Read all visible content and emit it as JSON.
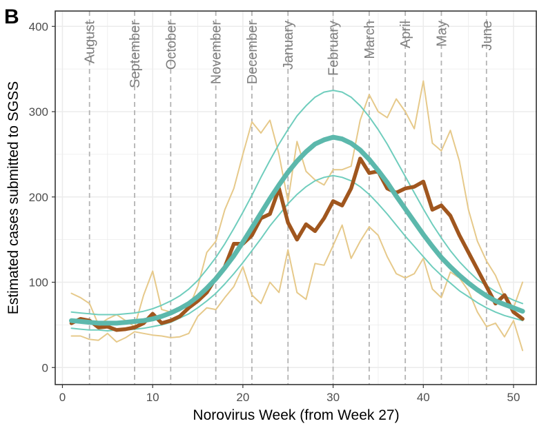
{
  "panel_label": "B",
  "chart_data": {
    "type": "line",
    "xlabel": "Norovirus Week (from Week 27)",
    "ylabel": "Estimated cases submitted to SGSS",
    "xlim": [
      -0.8,
      52.6
    ],
    "ylim": [
      -20,
      418
    ],
    "x_ticks": [
      0,
      10,
      20,
      30,
      40,
      50
    ],
    "y_ticks": [
      0,
      100,
      200,
      300,
      400
    ],
    "grid": true,
    "legend": "none",
    "colors": {
      "observed": "#a0561e",
      "observed_bounds": "#e6c98a",
      "fitted": "#5cb8ac",
      "fitted_bounds": "#6fcdbd",
      "month_lines": "#b3b3b3",
      "grid": "#ebebeb"
    },
    "month_markers": [
      {
        "label": "August",
        "week": 3
      },
      {
        "label": "September",
        "week": 8
      },
      {
        "label": "October",
        "week": 12
      },
      {
        "label": "November",
        "week": 17
      },
      {
        "label": "December",
        "week": 21
      },
      {
        "label": "January",
        "week": 25
      },
      {
        "label": "February",
        "week": 30
      },
      {
        "label": "March",
        "week": 34
      },
      {
        "label": "April",
        "week": 38
      },
      {
        "label": "May",
        "week": 42
      },
      {
        "label": "June",
        "week": 47
      }
    ],
    "x": [
      1,
      2,
      3,
      4,
      5,
      6,
      7,
      8,
      9,
      10,
      11,
      12,
      13,
      14,
      15,
      16,
      17,
      18,
      19,
      20,
      21,
      22,
      23,
      24,
      25,
      26,
      27,
      28,
      29,
      30,
      31,
      32,
      33,
      34,
      35,
      36,
      37,
      38,
      39,
      40,
      41,
      42,
      43,
      44,
      45,
      46,
      47,
      48,
      49,
      50,
      51
    ],
    "series": [
      {
        "role": "observed_upper",
        "values": [
          87,
          82,
          75,
          50,
          57,
          62,
          55,
          48,
          85,
          113,
          68,
          65,
          70,
          70,
          95,
          135,
          148,
          185,
          210,
          250,
          288,
          275,
          290,
          250,
          195,
          265,
          230,
          220,
          214,
          232,
          232,
          236,
          290,
          320,
          300,
          293,
          315,
          300,
          280,
          336,
          263,
          254,
          278,
          242,
          185,
          148,
          125,
          108,
          83,
          70,
          100
        ]
      },
      {
        "role": "observed",
        "values": [
          52,
          57,
          55,
          47,
          48,
          44,
          45,
          47,
          52,
          63,
          52,
          55,
          60,
          70,
          78,
          88,
          105,
          118,
          145,
          145,
          155,
          175,
          180,
          210,
          170,
          150,
          168,
          160,
          175,
          195,
          190,
          210,
          245,
          228,
          230,
          210,
          205,
          210,
          212,
          218,
          185,
          190,
          178,
          155,
          135,
          115,
          95,
          75,
          85,
          65,
          57
        ]
      },
      {
        "role": "observed_lower",
        "values": [
          37,
          37,
          33,
          32,
          40,
          30,
          35,
          42,
          40,
          38,
          37,
          35,
          36,
          40,
          60,
          70,
          68,
          82,
          95,
          118,
          85,
          75,
          100,
          88,
          138,
          88,
          80,
          122,
          120,
          143,
          167,
          128,
          148,
          165,
          155,
          130,
          110,
          105,
          110,
          128,
          92,
          82,
          112,
          105,
          90,
          65,
          48,
          52,
          36,
          55,
          20
        ]
      },
      {
        "role": "fitted_upper",
        "values": [
          65,
          64,
          63,
          62,
          62,
          62,
          63,
          64,
          66,
          69,
          73,
          78,
          84,
          92,
          102,
          115,
          129,
          145,
          163,
          182,
          202,
          223,
          243,
          262,
          279,
          295,
          307,
          317,
          323,
          325,
          323,
          317,
          307,
          294,
          279,
          262,
          243,
          224,
          205,
          186,
          168,
          152,
          137,
          124,
          113,
          103,
          96,
          89,
          84,
          79,
          75
        ]
      },
      {
        "role": "fitted",
        "values": [
          55,
          54,
          53,
          52,
          52,
          52,
          53,
          54,
          55,
          57,
          60,
          64,
          69,
          75,
          83,
          93,
          104,
          117,
          131,
          147,
          164,
          181,
          198,
          214,
          229,
          242,
          253,
          262,
          267,
          270,
          268,
          263,
          255,
          244,
          231,
          217,
          201,
          186,
          171,
          156,
          142,
          129,
          118,
          108,
          99,
          91,
          84,
          78,
          74,
          70,
          66
        ]
      },
      {
        "role": "fitted_lower",
        "values": [
          46,
          45,
          44,
          44,
          43,
          44,
          44,
          45,
          46,
          48,
          50,
          53,
          58,
          63,
          70,
          78,
          87,
          98,
          110,
          123,
          137,
          151,
          166,
          179,
          192,
          203,
          212,
          219,
          223,
          225,
          223,
          219,
          212,
          203,
          192,
          180,
          167,
          154,
          142,
          130,
          118,
          108,
          99,
          90,
          83,
          76,
          70,
          65,
          61,
          58,
          55
        ]
      }
    ]
  }
}
